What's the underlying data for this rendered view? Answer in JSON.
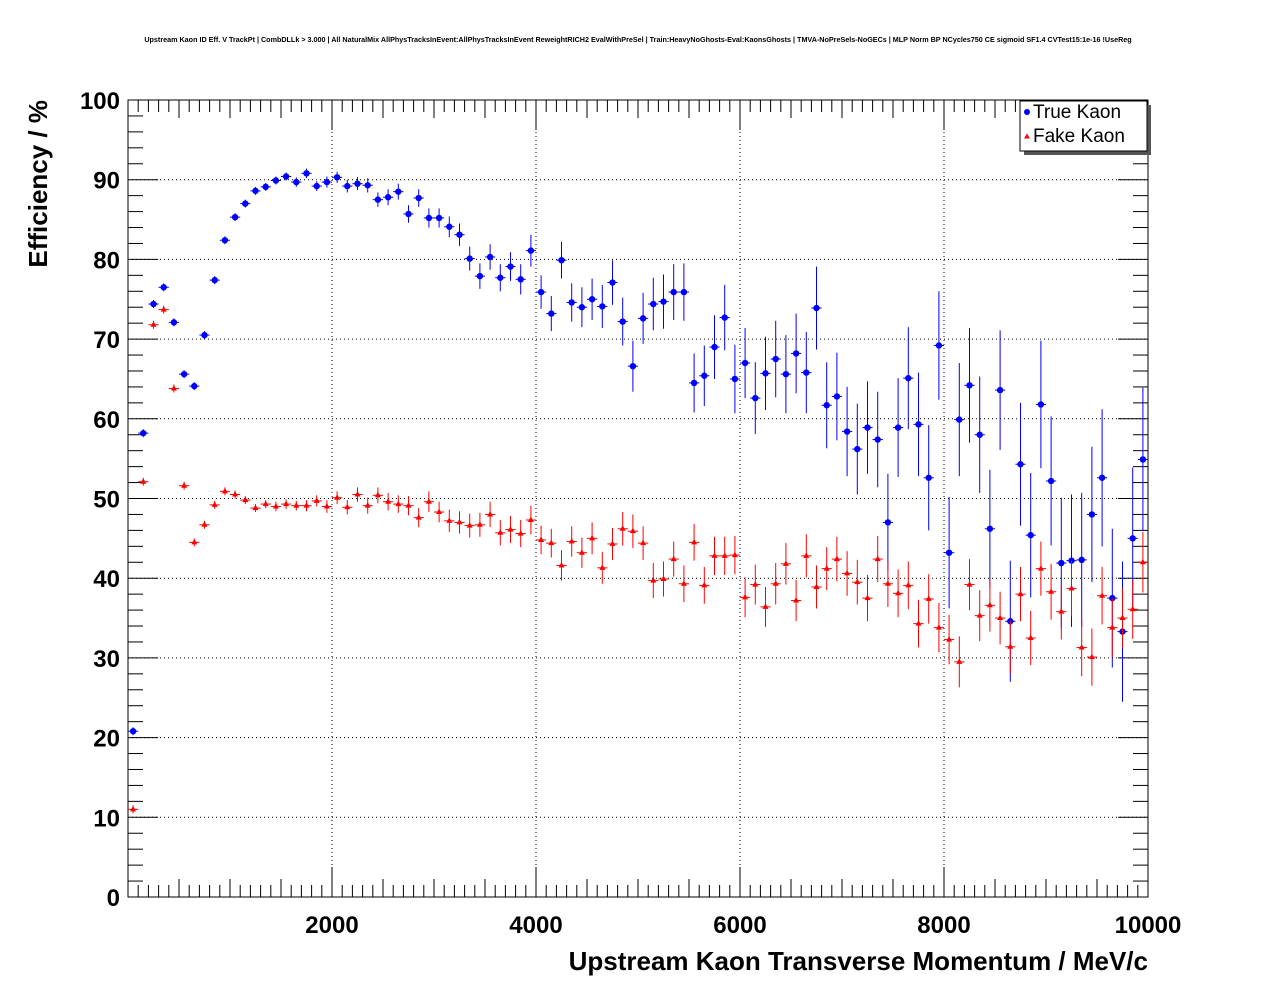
{
  "chart_data": {
    "type": "scatter",
    "title": "Upstream Kaon ID Eff. V TrackPt | CombDLLk > 3.000 | All NaturalMix AllPhysTracksInEvent:AllPhysTracksInEvent ReweightRICH2 EvalWithPreSel | Train:HeavyNoGhosts-Eval:KaonsGhosts | TMVA-NoPreSels-NoGECs | MLP Norm BP NCycles750 CE sigmoid SF1.4 CVTest15:1e-16 !UseReg",
    "xlabel": "Upstream Kaon Transverse Momentum / MeV/c",
    "ylabel": "Efficiency / %",
    "xlim": [
      0,
      10000
    ],
    "ylim": [
      0,
      100
    ],
    "x_ticks": [
      2000,
      4000,
      6000,
      8000,
      10000
    ],
    "x_tick_labels": [
      "2000",
      "4000",
      "6000",
      "8000",
      "10000"
    ],
    "y_ticks": [
      0,
      10,
      20,
      30,
      40,
      50,
      60,
      70,
      80,
      90,
      100
    ],
    "y_tick_labels": [
      "0",
      "10",
      "20",
      "30",
      "40",
      "50",
      "60",
      "70",
      "80",
      "90",
      "100"
    ],
    "grid": true,
    "legend_position": "top-right",
    "series": [
      {
        "name": "True Kaon",
        "color": "#0000ff",
        "marker": "circle",
        "x": [
          50,
          150,
          250,
          350,
          450,
          550,
          650,
          750,
          850,
          950,
          1050,
          1150,
          1250,
          1350,
          1450,
          1550,
          1650,
          1750,
          1850,
          1950,
          2050,
          2150,
          2250,
          2350,
          2450,
          2550,
          2650,
          2750,
          2850,
          2950,
          3050,
          3150,
          3250,
          3350,
          3450,
          3550,
          3650,
          3750,
          3850,
          3950,
          4050,
          4150,
          4250,
          4350,
          4450,
          4550,
          4650,
          4750,
          4850,
          4950,
          5050,
          5150,
          5250,
          5350,
          5450,
          5550,
          5650,
          5750,
          5850,
          5950,
          6050,
          6150,
          6250,
          6350,
          6450,
          6550,
          6650,
          6750,
          6850,
          6950,
          7050,
          7150,
          7250,
          7350,
          7450,
          7550,
          7650,
          7750,
          7850,
          7950,
          8050,
          8150,
          8250,
          8350,
          8450,
          8550,
          8650,
          8750,
          8850,
          8950,
          9050,
          9150,
          9250,
          9350,
          9450,
          9550,
          9650,
          9750,
          9850,
          9950
        ],
        "y": [
          20.8,
          58.2,
          74.4,
          76.5,
          72.1,
          65.6,
          64.1,
          70.5,
          77.4,
          82.4,
          85.3,
          87.0,
          88.6,
          89.1,
          89.9,
          90.4,
          89.7,
          90.8,
          89.2,
          89.7,
          90.3,
          89.2,
          89.5,
          89.3,
          87.5,
          87.8,
          88.5,
          85.7,
          87.7,
          85.2,
          85.2,
          84.1,
          83.1,
          80.1,
          77.9,
          80.3,
          77.7,
          79.1,
          77.5,
          81.1,
          75.9,
          73.2,
          79.9,
          74.6,
          74.0,
          75.0,
          74.1,
          77.1,
          72.2,
          66.6,
          72.6,
          74.4,
          74.7,
          75.9,
          75.9,
          64.5,
          65.4,
          69.0,
          72.7,
          65.0,
          67.0,
          62.6,
          65.7,
          67.5,
          65.6,
          68.2,
          65.8,
          73.9,
          61.7,
          62.8,
          58.4,
          56.2,
          58.9,
          57.4,
          47.0,
          58.9,
          65.1,
          59.3,
          52.6,
          69.2,
          43.2,
          59.9,
          64.2,
          58.0,
          46.2,
          63.6,
          34.6,
          54.3,
          45.4,
          61.8,
          52.2,
          41.9,
          42.2,
          42.3,
          48.0,
          52.6,
          37.5,
          33.3,
          45.0,
          54.9
        ],
        "y_err": [
          0.5,
          0.5,
          0.5,
          0.5,
          0.5,
          0.5,
          0.5,
          0.5,
          0.5,
          0.5,
          0.5,
          0.5,
          0.5,
          0.5,
          0.5,
          0.5,
          0.6,
          0.6,
          0.6,
          0.7,
          0.7,
          0.8,
          0.8,
          0.9,
          0.9,
          1.0,
          1.0,
          1.1,
          1.1,
          1.2,
          1.2,
          1.3,
          1.4,
          1.5,
          1.6,
          1.6,
          1.7,
          1.8,
          1.9,
          2.0,
          2.1,
          2.2,
          2.3,
          2.4,
          2.5,
          2.6,
          2.7,
          2.8,
          3.0,
          3.2,
          3.2,
          3.3,
          3.4,
          3.5,
          3.6,
          3.7,
          3.8,
          4.0,
          4.1,
          4.3,
          4.4,
          4.5,
          4.6,
          4.8,
          4.9,
          5.0,
          5.1,
          5.2,
          5.4,
          5.5,
          5.6,
          5.7,
          5.8,
          6.0,
          6.1,
          6.2,
          6.4,
          6.5,
          6.6,
          6.8,
          7.0,
          7.1,
          7.2,
          7.3,
          7.4,
          7.5,
          7.6,
          7.7,
          7.8,
          8.0,
          8.1,
          8.2,
          8.3,
          8.4,
          8.5,
          8.6,
          8.7,
          8.8,
          8.9,
          9.0
        ]
      },
      {
        "name": "Fake Kaon",
        "color": "#ff0000",
        "marker": "triangle",
        "x": [
          50,
          150,
          250,
          350,
          450,
          550,
          650,
          750,
          850,
          950,
          1050,
          1150,
          1250,
          1350,
          1450,
          1550,
          1650,
          1750,
          1850,
          1950,
          2050,
          2150,
          2250,
          2350,
          2450,
          2550,
          2650,
          2750,
          2850,
          2950,
          3050,
          3150,
          3250,
          3350,
          3450,
          3550,
          3650,
          3750,
          3850,
          3950,
          4050,
          4150,
          4250,
          4350,
          4450,
          4550,
          4650,
          4750,
          4850,
          4950,
          5050,
          5150,
          5250,
          5350,
          5450,
          5550,
          5650,
          5750,
          5850,
          5950,
          6050,
          6150,
          6250,
          6350,
          6450,
          6550,
          6650,
          6750,
          6850,
          6950,
          7050,
          7150,
          7250,
          7350,
          7450,
          7550,
          7650,
          7750,
          7850,
          7950,
          8050,
          8150,
          8250,
          8350,
          8450,
          8550,
          8650,
          8750,
          8850,
          8950,
          9050,
          9150,
          9250,
          9350,
          9450,
          9550,
          9650,
          9750,
          9850,
          9950
        ],
        "y": [
          11.0,
          52.1,
          71.8,
          73.7,
          63.8,
          51.6,
          44.5,
          46.7,
          49.2,
          50.9,
          50.5,
          49.8,
          48.8,
          49.3,
          49.0,
          49.3,
          49.1,
          49.1,
          49.7,
          49.0,
          50.1,
          48.9,
          50.5,
          49.1,
          50.4,
          49.6,
          49.3,
          49.1,
          47.6,
          49.6,
          48.3,
          47.2,
          47.0,
          46.6,
          46.7,
          48.0,
          45.7,
          46.1,
          45.6,
          47.3,
          44.8,
          44.4,
          41.6,
          44.6,
          43.2,
          45.0,
          41.3,
          44.3,
          46.2,
          45.9,
          44.4,
          39.7,
          39.9,
          42.4,
          39.3,
          44.5,
          39.1,
          42.8,
          42.8,
          42.9,
          37.6,
          39.2,
          36.4,
          39.3,
          41.8,
          37.2,
          42.8,
          38.9,
          41.2,
          42.4,
          40.6,
          39.5,
          37.5,
          42.4,
          39.3,
          38.1,
          39.1,
          34.3,
          37.4,
          33.8,
          32.3,
          29.5,
          39.2,
          35.3,
          36.6,
          35.0,
          31.4,
          38.0,
          32.5,
          41.2,
          38.3,
          35.8,
          38.7,
          31.3,
          30.1,
          37.8,
          33.8,
          35.0,
          36.1,
          42.0
        ],
        "y_err": [
          0.5,
          0.5,
          0.5,
          0.5,
          0.5,
          0.5,
          0.5,
          0.5,
          0.5,
          0.5,
          0.5,
          0.5,
          0.5,
          0.5,
          0.6,
          0.6,
          0.6,
          0.7,
          0.7,
          0.8,
          0.8,
          0.9,
          0.9,
          1.0,
          1.0,
          1.1,
          1.1,
          1.2,
          1.2,
          1.3,
          1.3,
          1.4,
          1.4,
          1.5,
          1.5,
          1.6,
          1.6,
          1.7,
          1.7,
          1.8,
          1.8,
          1.8,
          1.9,
          1.9,
          1.9,
          2.0,
          2.0,
          2.0,
          2.1,
          2.1,
          2.1,
          2.2,
          2.2,
          2.2,
          2.3,
          2.3,
          2.3,
          2.4,
          2.4,
          2.4,
          2.5,
          2.5,
          2.5,
          2.6,
          2.6,
          2.6,
          2.7,
          2.7,
          2.7,
          2.8,
          2.8,
          2.8,
          2.9,
          2.9,
          2.9,
          3.0,
          3.0,
          3.0,
          3.1,
          3.1,
          3.1,
          3.2,
          3.2,
          3.2,
          3.3,
          3.3,
          3.3,
          3.4,
          3.4,
          3.4,
          3.5,
          3.5,
          3.5,
          3.6,
          3.6,
          3.6,
          3.7,
          3.7,
          3.7,
          3.8
        ]
      }
    ]
  }
}
